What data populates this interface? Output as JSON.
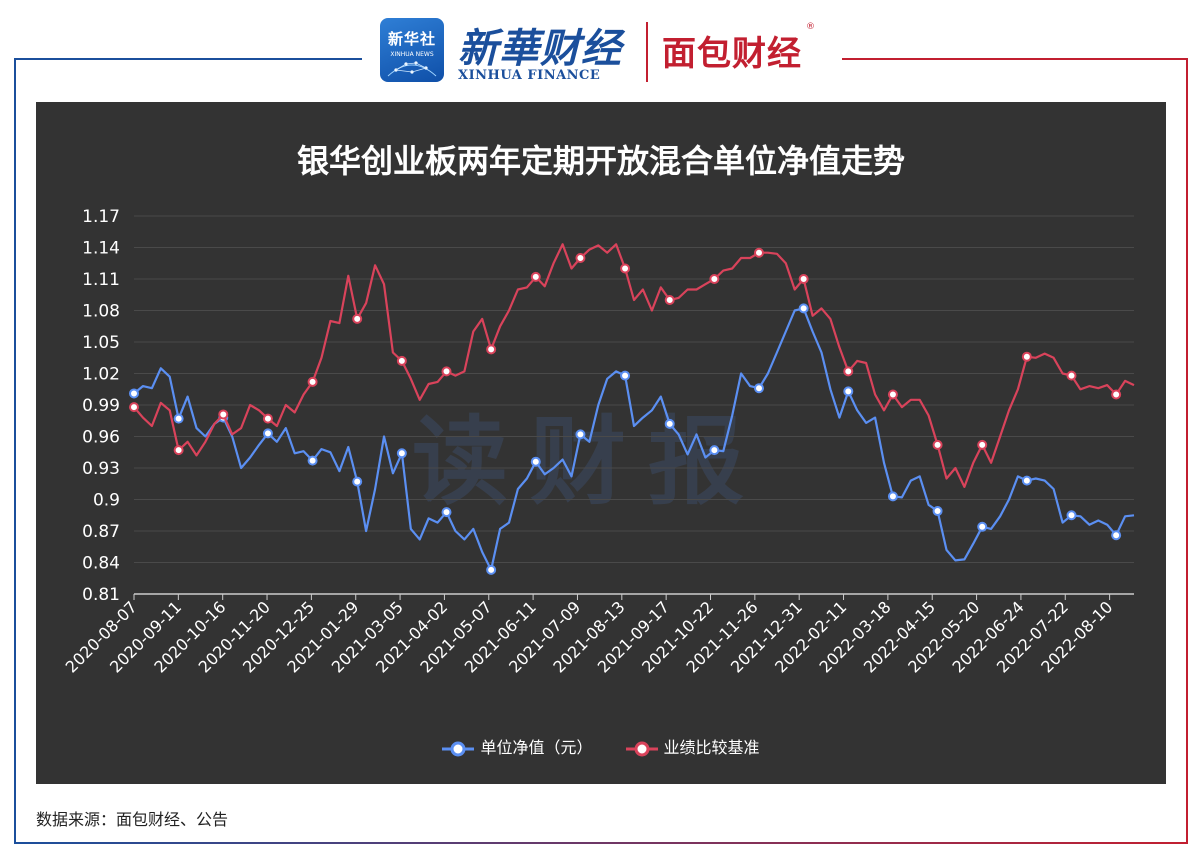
{
  "header": {
    "xinhua_badge_cn": "新华社",
    "xinhua_badge_en": "XINHUA NEWS",
    "xinhua_finance_cn": "新華财经",
    "xinhua_finance_en": "XINHUA FINANCE",
    "mianbao_logo": "面包财经",
    "registered_mark": "®"
  },
  "watermark": "读财报",
  "footer": {
    "source": "数据来源：面包财经、公告"
  },
  "colors": {
    "panel": "#333333",
    "nav_line": "#5b8ff2",
    "benchmark_line": "#d9435b",
    "frame_blue": "#1b4f9c",
    "frame_red": "#c21f30"
  },
  "chart_data": {
    "type": "line",
    "title": "银华创业板两年定期开放混合单位净值走势",
    "xlabel": "",
    "ylabel": "",
    "ylim": [
      0.81,
      1.17
    ],
    "yticks": [
      "1.17",
      "1.14",
      "1.11",
      "1.08",
      "1.05",
      "1.02",
      "0.99",
      "0.96",
      "0.93",
      "0.9",
      "0.87",
      "0.84",
      "0.81"
    ],
    "grid": true,
    "legend_position": "bottom",
    "x_tick_labels": [
      "2020-08-07",
      "2020-09-11",
      "2020-10-16",
      "2020-11-20",
      "2020-12-25",
      "2021-01-29",
      "2021-03-05",
      "2021-04-02",
      "2021-05-07",
      "2021-06-11",
      "2021-07-09",
      "2021-08-13",
      "2021-09-17",
      "2021-10-22",
      "2021-11-26",
      "2021-12-31",
      "2022-02-11",
      "2022-03-18",
      "2022-04-15",
      "2022-05-20",
      "2022-06-24",
      "2022-07-22",
      "2022-08-10"
    ],
    "series": [
      {
        "name": "单位净值（元）",
        "values": [
          1.001,
          1.008,
          1.006,
          1.025,
          1.017,
          0.977,
          0.998,
          0.968,
          0.96,
          0.972,
          0.978,
          0.96,
          0.93,
          0.94,
          0.952,
          0.963,
          0.955,
          0.968,
          0.944,
          0.946,
          0.937,
          0.948,
          0.945,
          0.927,
          0.95,
          0.917,
          0.87,
          0.91,
          0.96,
          0.925,
          0.944,
          0.872,
          0.862,
          0.882,
          0.878,
          0.888,
          0.87,
          0.862,
          0.872,
          0.85,
          0.833,
          0.872,
          0.878,
          0.91,
          0.92,
          0.936,
          0.924,
          0.93,
          0.938,
          0.922,
          0.962,
          0.955,
          0.99,
          1.015,
          1.022,
          1.018,
          0.97,
          0.978,
          0.985,
          0.998,
          0.972,
          0.962,
          0.943,
          0.962,
          0.94,
          0.947,
          0.946,
          0.98,
          1.02,
          1.008,
          1.006,
          1.02,
          1.04,
          1.06,
          1.08,
          1.082,
          1.06,
          1.04,
          1.005,
          0.978,
          1.003,
          0.985,
          0.973,
          0.978,
          0.935,
          0.903,
          0.902,
          0.918,
          0.922,
          0.895,
          0.889,
          0.852,
          0.842,
          0.843,
          0.858,
          0.874,
          0.872,
          0.884,
          0.9,
          0.922,
          0.918,
          0.92,
          0.918,
          0.91,
          0.878,
          0.885,
          0.884,
          0.876,
          0.88,
          0.876,
          0.866,
          0.884,
          0.885
        ]
      },
      {
        "name": "业绩比较基准",
        "values": [
          0.988,
          0.978,
          0.97,
          0.992,
          0.985,
          0.947,
          0.955,
          0.942,
          0.955,
          0.972,
          0.981,
          0.962,
          0.968,
          0.99,
          0.985,
          0.977,
          0.97,
          0.99,
          0.983,
          1.0,
          1.012,
          1.035,
          1.07,
          1.068,
          1.113,
          1.072,
          1.087,
          1.123,
          1.105,
          1.04,
          1.032,
          1.015,
          0.995,
          1.01,
          1.012,
          1.022,
          1.018,
          1.022,
          1.06,
          1.072,
          1.043,
          1.065,
          1.08,
          1.1,
          1.102,
          1.112,
          1.103,
          1.125,
          1.143,
          1.12,
          1.13,
          1.138,
          1.142,
          1.135,
          1.143,
          1.12,
          1.09,
          1.1,
          1.08,
          1.102,
          1.09,
          1.092,
          1.1,
          1.1,
          1.105,
          1.11,
          1.118,
          1.12,
          1.13,
          1.13,
          1.135,
          1.135,
          1.134,
          1.125,
          1.1,
          1.11,
          1.075,
          1.082,
          1.072,
          1.045,
          1.022,
          1.032,
          1.03,
          1.0,
          0.985,
          1.0,
          0.988,
          0.995,
          0.995,
          0.98,
          0.952,
          0.92,
          0.93,
          0.912,
          0.935,
          0.952,
          0.935,
          0.96,
          0.985,
          1.005,
          1.036,
          1.035,
          1.039,
          1.035,
          1.02,
          1.018,
          1.005,
          1.008,
          1.006,
          1.009,
          1.0,
          1.013,
          1.009
        ]
      }
    ]
  }
}
